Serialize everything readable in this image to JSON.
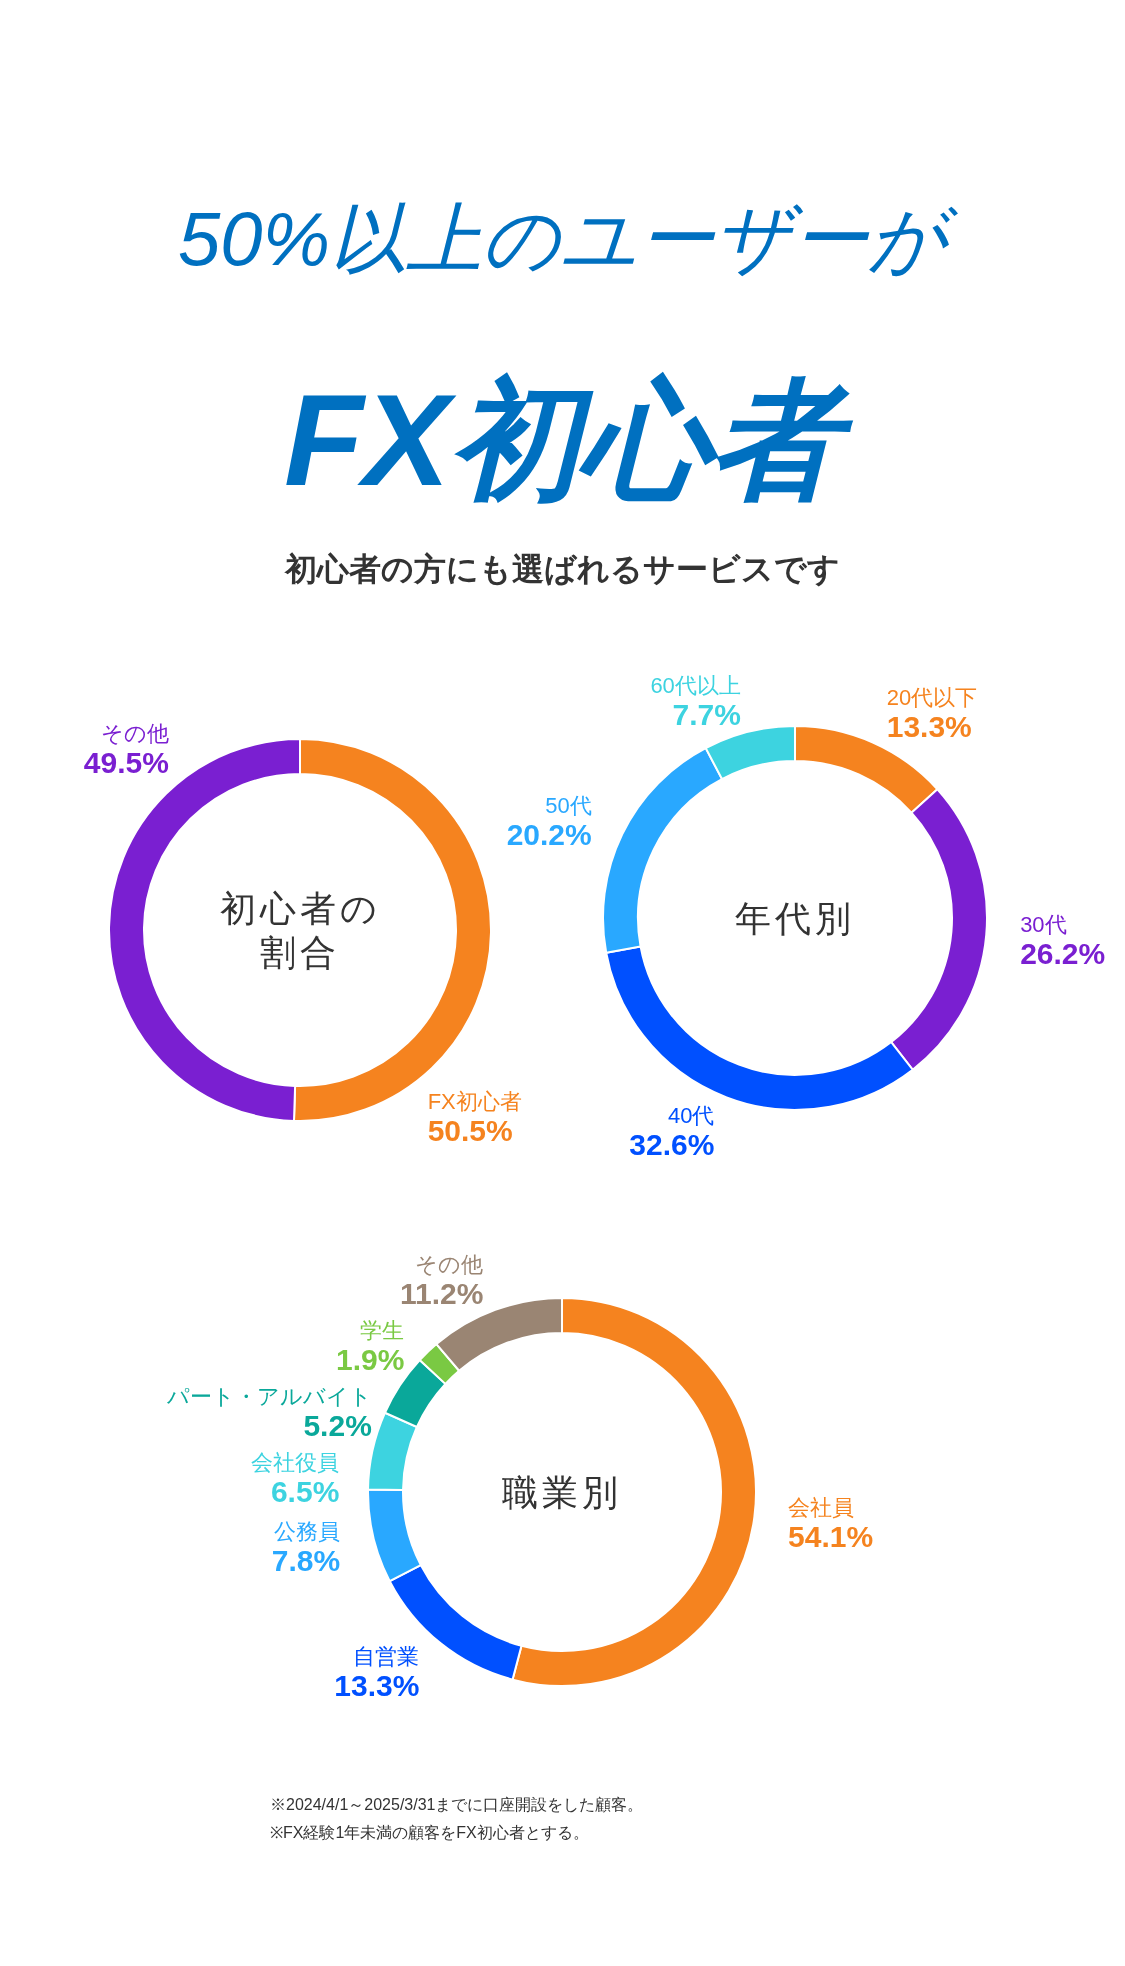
{
  "chart_data": [
    {
      "type": "other",
      "title": "50%以上のユーザーが",
      "subtitle": "FX初心者",
      "annotations": [
        "初心者の方にも選ばれるサービスです",
        "※2024/4/1～2025/3/31までに口座開設をした顧客。",
        "※FX経験1年未満の顧客をFX初心者とする。"
      ]
    },
    {
      "type": "donut",
      "title": "初心者の割合",
      "categories": [
        "FX初心者",
        "その他"
      ],
      "values": [
        50.5,
        49.5
      ],
      "value_labels": [
        "50.5%",
        "49.5%"
      ],
      "colors": [
        "#f5831f",
        "#7a1fd1"
      ]
    },
    {
      "type": "donut",
      "title": "年代別",
      "categories": [
        "20代以下",
        "30代",
        "40代",
        "50代",
        "60代以上"
      ],
      "values": [
        13.3,
        26.2,
        32.6,
        20.2,
        7.7
      ],
      "value_labels": [
        "13.3%",
        "26.2%",
        "32.6%",
        "20.2%",
        "7.7%"
      ],
      "colors": [
        "#f5831f",
        "#7a1fd1",
        "#0050ff",
        "#29a8ff",
        "#3dd3e0"
      ]
    },
    {
      "type": "donut",
      "title": "職業別",
      "categories": [
        "会社員",
        "自営業",
        "公務員",
        "会社役員",
        "パート・アルバイト",
        "学生",
        "その他"
      ],
      "values": [
        54.1,
        13.3,
        7.8,
        6.5,
        5.2,
        1.9,
        11.2
      ],
      "value_labels": [
        "54.1%",
        "13.3%",
        "7.8%",
        "6.5%",
        "5.2%",
        "1.9%",
        "11.2%"
      ],
      "colors": [
        "#f5831f",
        "#0050ff",
        "#29a8ff",
        "#3dd3e0",
        "#0aa89a",
        "#7ac943",
        "#9a8573"
      ]
    }
  ]
}
